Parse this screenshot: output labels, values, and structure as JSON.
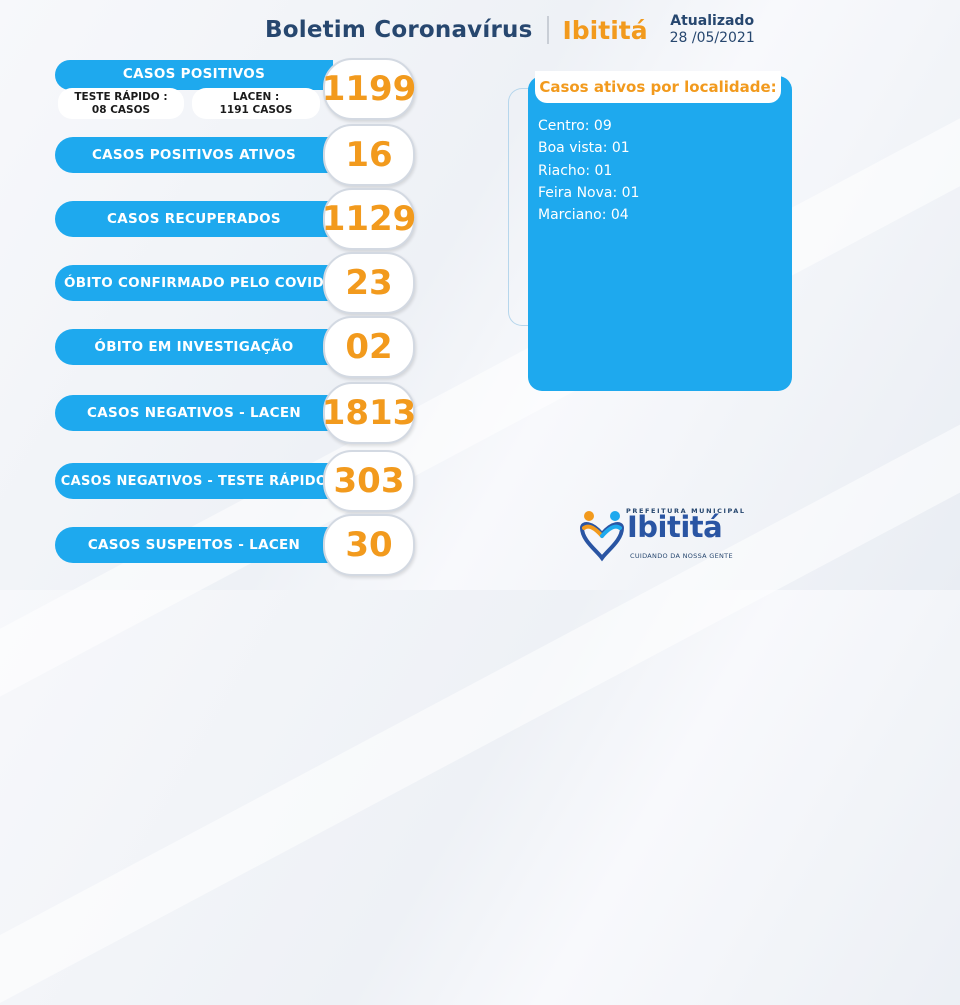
{
  "header": {
    "title": "Boletim Coronavírus",
    "city": "Ibititá",
    "updated_label": "Atualizado",
    "updated_date": "28 /05/2021"
  },
  "stats": [
    {
      "label": "CASOS  POSITIVOS",
      "value": "1199"
    },
    {
      "label": "CASOS POSITIVOS ATIVOS",
      "value": "16"
    },
    {
      "label": "CASOS RECUPERADOS",
      "value": "1129"
    },
    {
      "label": "ÓBITO CONFIRMADO PELO COVID",
      "value": "23"
    },
    {
      "label": "ÓBITO EM INVESTIGAÇÃO",
      "value": "02"
    },
    {
      "label": "CASOS NEGATIVOS - LACEN",
      "value": "1813"
    },
    {
      "label": "CASOS NEGATIVOS - TESTE RÁPIDO",
      "value": "303"
    },
    {
      "label": "CASOS SUSPEITOS - LACEN",
      "value": "30"
    }
  ],
  "positive_breakdown": {
    "rapid_test_label": "TESTE RÁPIDO :",
    "rapid_test_value": "08 CASOS",
    "lacen_label": "LACEN :",
    "lacen_value": "1191 CASOS"
  },
  "locality_panel": {
    "title": "Casos ativos por localidade:",
    "items": [
      "Centro: 09",
      "Boa vista: 01",
      "Riacho: 01",
      "Feira Nova: 01",
      "Marciano: 04"
    ]
  },
  "logo": {
    "top_text": "PREFEITURA MUNICIPAL",
    "name": "Ibititá",
    "slogan": "CUIDANDO DA NOSSA GENTE",
    "icon": "heart-people-icon"
  },
  "colors": {
    "accent_blue": "#1ea9ee",
    "accent_orange": "#f29a1d",
    "navy": "#27476f"
  }
}
